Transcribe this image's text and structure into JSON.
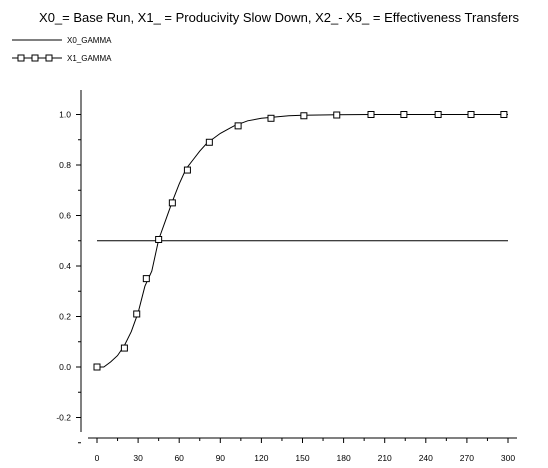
{
  "chart_data": {
    "type": "line",
    "title": "X0_= Base Run, X1_ = Producivity Slow Down, X2_- X5_ = Effectiveness Transfers",
    "xlabel": "",
    "ylabel": "",
    "xlim": [
      0,
      300
    ],
    "ylim": [
      -0.25,
      1.1
    ],
    "x_ticks": [
      "0",
      "30",
      "60",
      "90",
      "120",
      "150",
      "180",
      "210",
      "240",
      "270",
      "300"
    ],
    "y_ticks": [
      "-0.2",
      "0.0",
      "0.2",
      "0.4",
      "0.6",
      "0.8",
      "1.0"
    ],
    "grid": false,
    "legend_position": "top-left",
    "series": [
      {
        "name": "X0_GAMMA",
        "marker": "none",
        "color": "#000000",
        "x": [
          0,
          300
        ],
        "values": [
          0.5,
          0.5
        ]
      },
      {
        "name": "X1_GAMMA",
        "marker": "square",
        "color": "#000000",
        "x": [
          0,
          5,
          10,
          15,
          20,
          25,
          30,
          35,
          40,
          45,
          50,
          55,
          60,
          65,
          70,
          75,
          80,
          90,
          100,
          110,
          120,
          130,
          140,
          150,
          175,
          200,
          225,
          250,
          275,
          300
        ],
        "values": [
          0.0,
          0.0,
          0.02,
          0.045,
          0.085,
          0.14,
          0.215,
          0.32,
          0.38,
          0.505,
          0.58,
          0.655,
          0.725,
          0.785,
          0.82,
          0.855,
          0.885,
          0.925,
          0.955,
          0.975,
          0.985,
          0.99,
          0.995,
          0.997,
          0.999,
          1.0,
          1.0,
          1.0,
          1.0,
          1.0
        ],
        "marker_x": [
          0,
          20,
          29,
          36,
          45,
          55,
          66,
          82,
          103,
          127,
          151,
          175,
          200,
          224,
          249,
          273,
          297
        ],
        "marker_values": [
          0.0,
          0.075,
          0.21,
          0.35,
          0.505,
          0.65,
          0.78,
          0.89,
          0.955,
          0.985,
          0.995,
          0.998,
          1.0,
          1.0,
          1.0,
          1.0,
          1.0
        ]
      }
    ]
  }
}
